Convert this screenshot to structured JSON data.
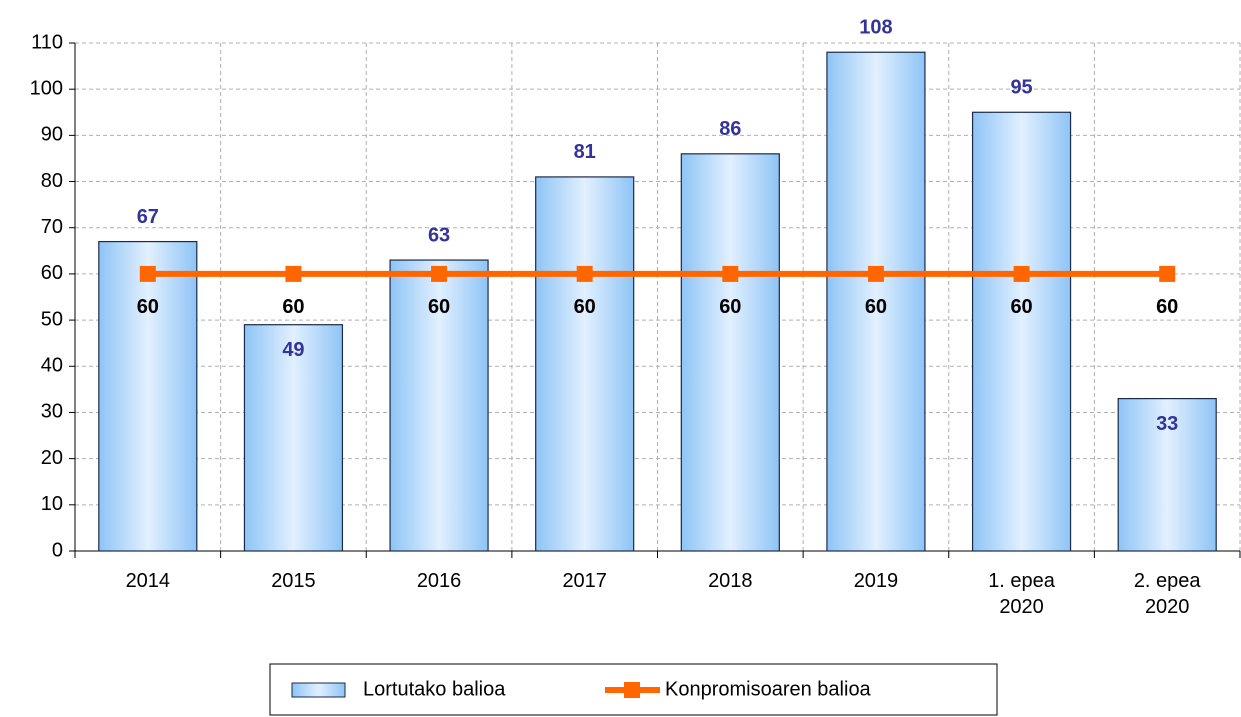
{
  "chart_data": {
    "type": "bar",
    "categories": [
      "2014",
      "2015",
      "2016",
      "2017",
      "2018",
      "2019",
      "1. epea 2020",
      "2. epea 2020"
    ],
    "series": [
      {
        "name": "Lortutako balioa",
        "type": "bar",
        "color": "#99ccff",
        "values": [
          67,
          49,
          63,
          81,
          86,
          108,
          95,
          33
        ]
      },
      {
        "name": "Konpromisoaren balioa",
        "type": "line",
        "color": "#ff6600",
        "values": [
          60,
          60,
          60,
          60,
          60,
          60,
          60,
          60
        ]
      }
    ],
    "ylim": [
      0,
      110
    ],
    "yticks": [
      0,
      10,
      20,
      30,
      40,
      50,
      60,
      70,
      80,
      90,
      100,
      110
    ],
    "grid": true,
    "legend": "bottom"
  }
}
